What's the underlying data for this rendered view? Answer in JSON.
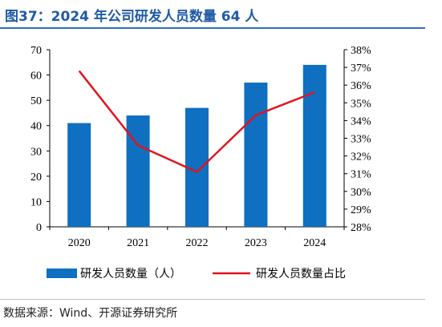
{
  "figure": {
    "title": "图37：2024 年公司研发人员数量 64 人",
    "source": "数据来源：Wind、开源证券研究所"
  },
  "chart_data": {
    "type": "bar+line",
    "categories": [
      "2020",
      "2021",
      "2022",
      "2023",
      "2024"
    ],
    "series": [
      {
        "name": "研发人员数量（人）",
        "type": "bar",
        "axis": "left",
        "color": "#0f6fc0",
        "values": [
          41,
          44,
          47,
          57,
          64
        ]
      },
      {
        "name": "研发人员数量占比",
        "type": "line",
        "axis": "right",
        "color": "#e1141c",
        "values": [
          36.8,
          32.6,
          31.1,
          34.3,
          35.6
        ]
      }
    ],
    "y_left": {
      "min": 0,
      "max": 70,
      "step": 10,
      "tick_labels": [
        "0",
        "10",
        "20",
        "30",
        "40",
        "50",
        "60",
        "70"
      ]
    },
    "y_right": {
      "min": 28,
      "max": 38,
      "step": 1,
      "tick_labels": [
        "28%",
        "29%",
        "30%",
        "31%",
        "32%",
        "33%",
        "34%",
        "35%",
        "36%",
        "37%",
        "38%"
      ]
    },
    "grid": false,
    "legend_position": "bottom"
  }
}
